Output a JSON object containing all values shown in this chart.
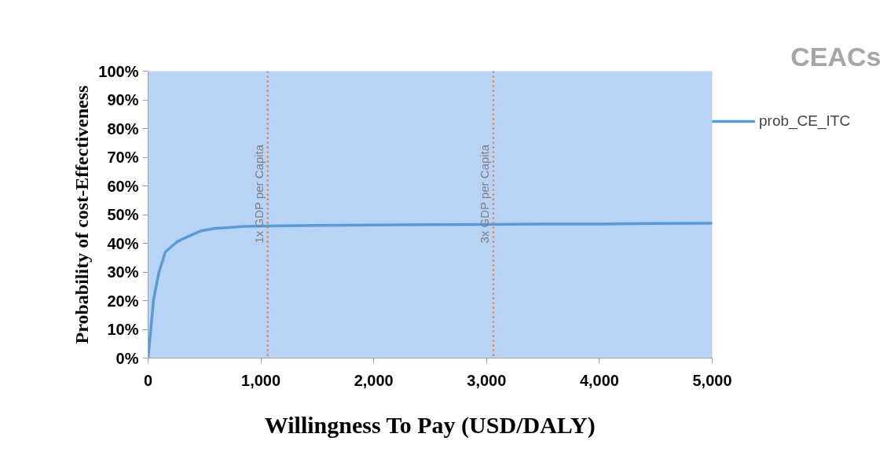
{
  "chart_data": {
    "type": "line",
    "title": "CEACs",
    "xlabel": "Willingness To Pay (USD/DALY)",
    "ylabel": "Probability of cost-Effectiveness",
    "x": [
      0,
      49,
      95,
      153,
      258,
      362,
      467,
      592,
      710,
      850,
      1045,
      1500,
      2000,
      2500,
      3000,
      3500,
      4000,
      4500,
      5000
    ],
    "series": [
      {
        "name": "prob_CE_ITC",
        "color": "#5b9bd5",
        "values": [
          0,
          20.5,
          29.7,
          37,
          40.6,
          42.5,
          44.3,
          45.2,
          45.5,
          45.9,
          46.0,
          46.2,
          46.4,
          46.5,
          46.6,
          46.7,
          46.7,
          46.9,
          47.0
        ]
      }
    ],
    "xlim": [
      0,
      5000
    ],
    "xticks": [
      {
        "value": 0,
        "label": "0"
      },
      {
        "value": 1000,
        "label": "1,000"
      },
      {
        "value": 2000,
        "label": "2,000"
      },
      {
        "value": 3000,
        "label": "3,000"
      },
      {
        "value": 4000,
        "label": "4,000"
      },
      {
        "value": 5000,
        "label": "5,000"
      }
    ],
    "ylim": [
      0,
      100
    ],
    "yticks": [
      {
        "value": 0,
        "label": "0%"
      },
      {
        "value": 10,
        "label": "10%"
      },
      {
        "value": 20,
        "label": "20%"
      },
      {
        "value": 30,
        "label": "30%"
      },
      {
        "value": 40,
        "label": "40%"
      },
      {
        "value": 50,
        "label": "50%"
      },
      {
        "value": 60,
        "label": "60%"
      },
      {
        "value": 70,
        "label": "70%"
      },
      {
        "value": 80,
        "label": "80%"
      },
      {
        "value": 90,
        "label": "90%"
      },
      {
        "value": 100,
        "label": "100%"
      }
    ],
    "ref_lines": [
      {
        "axis": "x",
        "value": 1060,
        "label": "1x GDP per Capita",
        "color": "#ed7d31",
        "line_style": "dotted"
      },
      {
        "axis": "x",
        "value": 3060,
        "label": "3x GDP per Capita",
        "color": "#ed7d31",
        "line_style": "dotted"
      }
    ],
    "grid": false,
    "legend": "top right",
    "marker": "none",
    "line_style": "solid"
  }
}
